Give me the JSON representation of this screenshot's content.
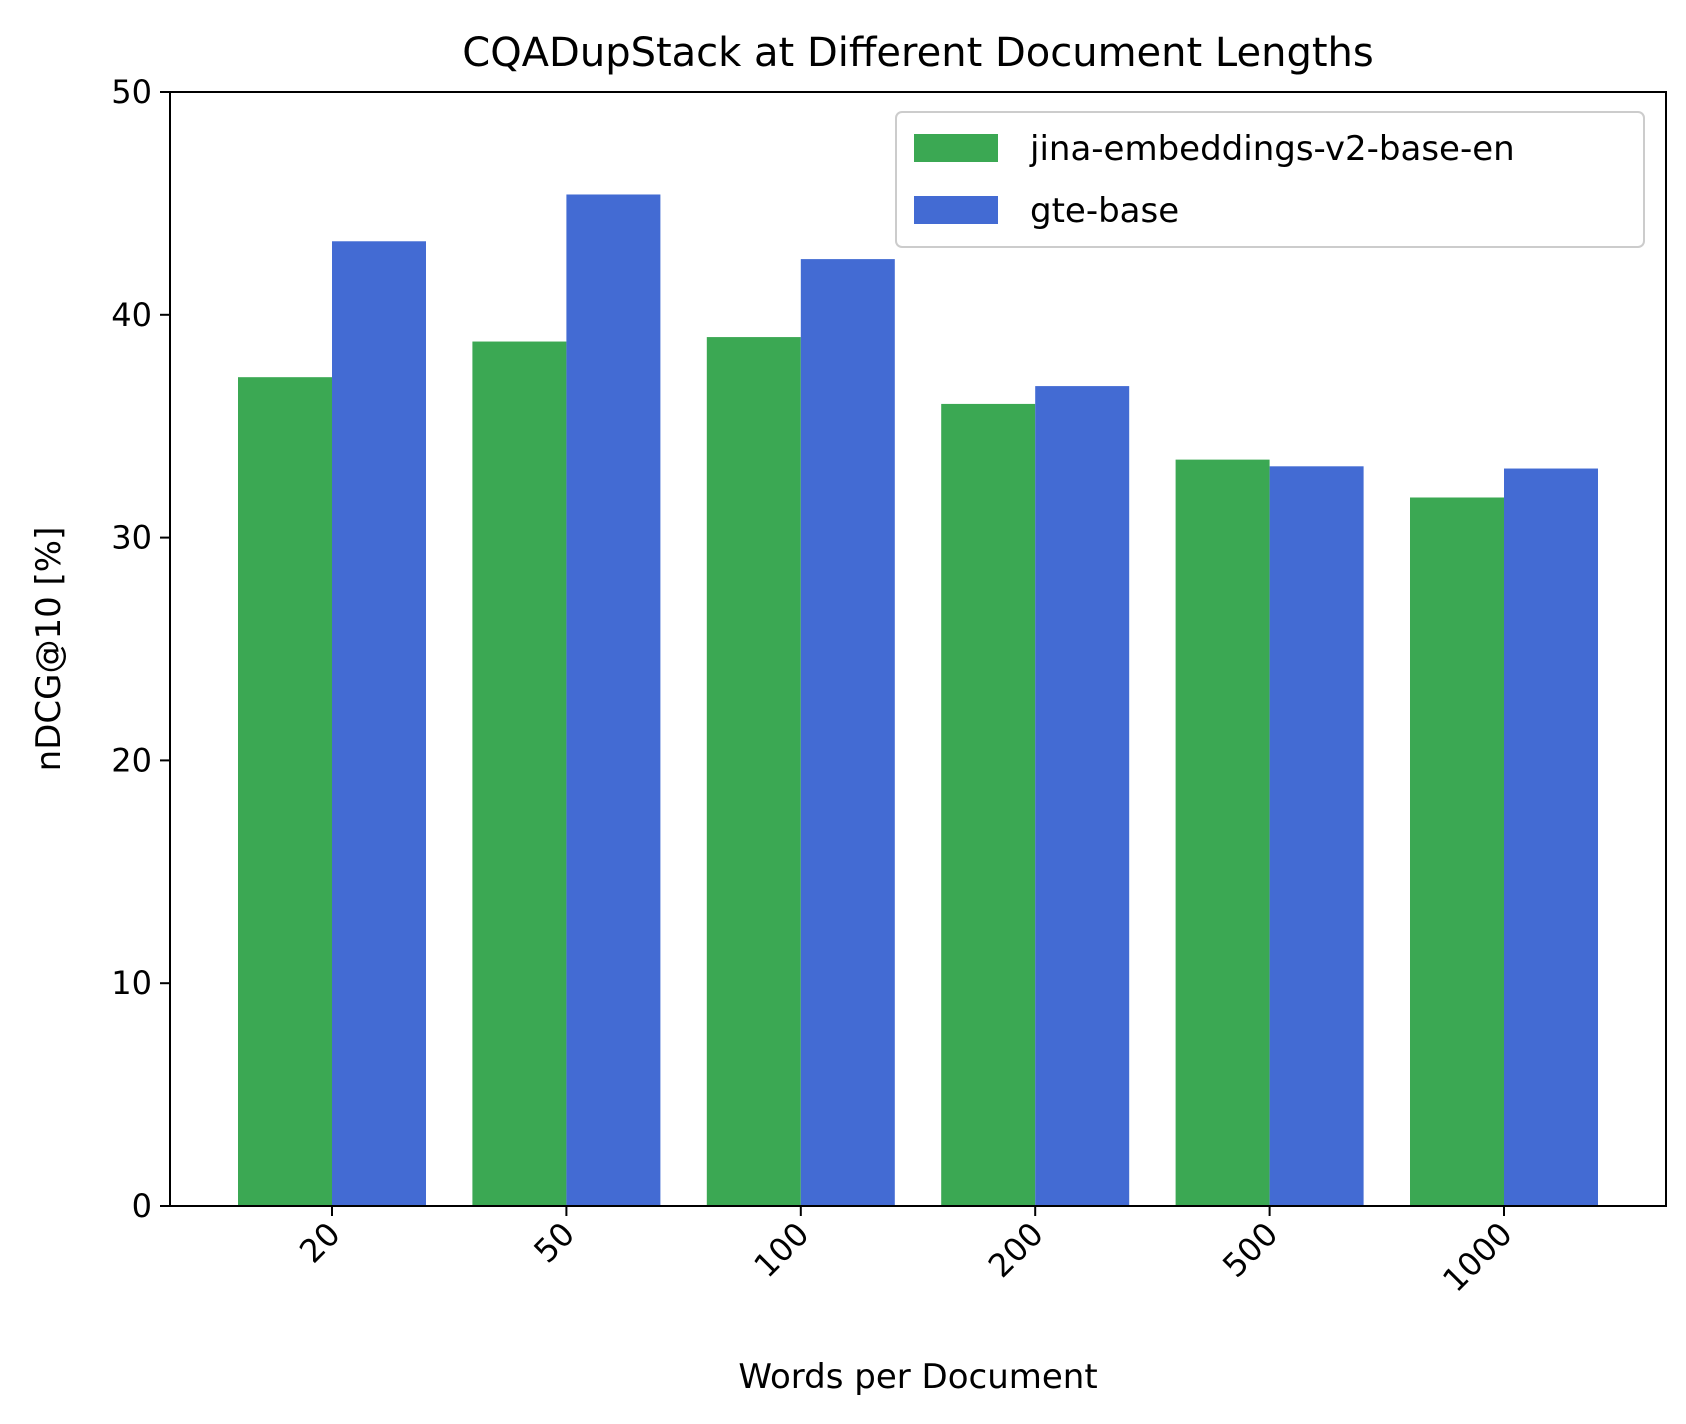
{
  "chart_data": {
    "type": "bar",
    "title": "CQADupStack at Different Document Lengths",
    "xlabel": "Words per Document",
    "ylabel": "nDCG@10 [%]",
    "categories": [
      "20",
      "50",
      "100",
      "200",
      "500",
      "1000"
    ],
    "series": [
      {
        "name": "jina-embeddings-v2-base-en",
        "color": "#3ba853",
        "values": [
          37.2,
          38.8,
          39.0,
          36.0,
          33.5,
          31.8
        ]
      },
      {
        "name": "gte-base",
        "color": "#436bd3",
        "values": [
          43.3,
          45.4,
          42.5,
          36.8,
          33.2,
          33.1
        ]
      }
    ],
    "ylim": [
      0,
      50
    ],
    "yticks": [
      0,
      10,
      20,
      30,
      40,
      50
    ],
    "yticklabels": [
      "0",
      "10",
      "20",
      "30",
      "40",
      "50"
    ],
    "grid": false,
    "legend_position": "top-right",
    "xtick_rotation_deg": -45
  }
}
